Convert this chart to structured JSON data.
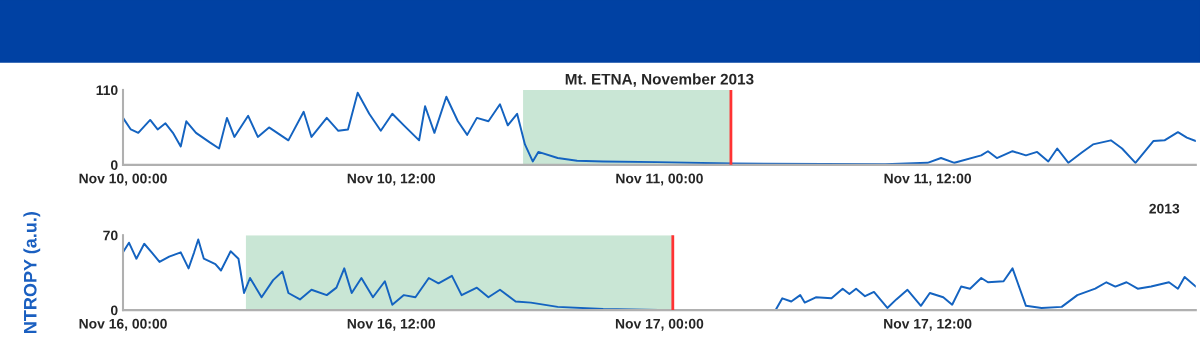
{
  "chart_data": [
    {
      "type": "line",
      "title": "Mt. ETNA, November 2013",
      "annotations": [
        "2013"
      ],
      "x": [
        "2013-11-10T00:00",
        "2013-11-10T00:21",
        "2013-11-10T00:41",
        "2013-11-10T01:13",
        "2013-11-10T01:33",
        "2013-11-10T01:54",
        "2013-11-10T02:14",
        "2013-11-10T02:35",
        "2013-11-10T02:50",
        "2013-11-10T03:16",
        "2013-11-10T03:53",
        "2013-11-10T04:18",
        "2013-11-10T04:39",
        "2013-11-10T04:59",
        "2013-11-10T05:36",
        "2013-11-10T06:02",
        "2013-11-10T06:32",
        "2013-11-10T07:24",
        "2013-11-10T08:05",
        "2013-11-10T08:26",
        "2013-11-10T09:07",
        "2013-11-10T09:38",
        "2013-11-10T10:04",
        "2013-11-10T10:30",
        "2013-11-10T11:01",
        "2013-11-10T11:32",
        "2013-11-10T12:03",
        "2013-11-10T12:34",
        "2013-11-10T13:15",
        "2013-11-10T13:31",
        "2013-11-10T13:56",
        "2013-11-10T14:28",
        "2013-11-10T14:59",
        "2013-11-10T15:24",
        "2013-11-10T15:50",
        "2013-11-10T16:21",
        "2013-11-10T16:52",
        "2013-11-10T17:13",
        "2013-11-10T17:38",
        "2013-11-10T17:59",
        "2013-11-10T18:20",
        "2013-11-10T18:35",
        "2013-11-10T19:27",
        "2013-11-10T20:19",
        "2013-11-10T21:29",
        "2013-11-10T23:54",
        "2013-11-11T03:12",
        "2013-11-11T10:06",
        "2013-11-11T12:00",
        "2013-11-11T12:36",
        "2013-11-11T13:12",
        "2013-11-11T14:24",
        "2013-11-11T14:42",
        "2013-11-11T15:06",
        "2013-11-11T15:48",
        "2013-11-11T16:24",
        "2013-11-11T16:54",
        "2013-11-11T17:24",
        "2013-11-11T17:48",
        "2013-11-11T18:18",
        "2013-11-11T18:54",
        "2013-11-11T19:24",
        "2013-11-11T20:12",
        "2013-11-11T20:42",
        "2013-11-11T21:18",
        "2013-11-11T22:06",
        "2013-11-11T22:36",
        "2013-11-11T23:12",
        "2013-11-11T23:36",
        "2013-11-12T00:00"
      ],
      "series": [
        {
          "color": "#1463c0",
          "values": [
            69,
            52,
            47,
            66,
            52,
            61,
            47,
            27,
            64,
            47,
            33,
            24,
            69,
            41,
            72,
            41,
            55,
            36,
            78,
            41,
            69,
            50,
            52,
            106,
            75,
            50,
            75,
            58,
            36,
            86,
            47,
            100,
            64,
            44,
            69,
            64,
            89,
            58,
            75,
            30,
            5,
            19,
            10,
            6,
            5,
            4,
            2,
            1,
            3,
            10,
            3,
            14,
            20,
            10,
            20,
            14,
            19,
            5,
            24,
            3,
            18,
            30,
            36,
            24,
            3,
            35,
            36,
            48,
            40,
            35
          ]
        }
      ],
      "xlim": [
        "2013-11-10T00:00",
        "2013-11-12T00:00"
      ],
      "xticks": [
        {
          "value": "2013-11-10T00:00",
          "label": "Nov 10, 00:00"
        },
        {
          "value": "2013-11-10T12:00",
          "label": "Nov 10, 12:00"
        },
        {
          "value": "2013-11-11T00:00",
          "label": "Nov 11, 00:00"
        },
        {
          "value": "2013-11-11T12:00",
          "label": "Nov 11, 12:00"
        }
      ],
      "ylim": [
        0,
        110
      ],
      "yticks": [
        0,
        110
      ],
      "bands": [
        {
          "axis": "x",
          "from": "2013-11-10T17:54",
          "to": "2013-11-11T03:12",
          "color": "#c9e6d5"
        }
      ],
      "ref_lines": [
        {
          "axis": "x",
          "value": "2013-11-11T03:12",
          "color": "#ff3333"
        }
      ],
      "grid": false,
      "legend": false
    },
    {
      "type": "line",
      "ylabel": "NTROPY (a.u.)",
      "x": [
        "2013-11-16T00:00",
        "2013-11-16T00:16",
        "2013-11-16T00:36",
        "2013-11-16T00:57",
        "2013-11-16T01:17",
        "2013-11-16T01:38",
        "2013-11-16T02:04",
        "2013-11-16T02:35",
        "2013-11-16T02:56",
        "2013-11-16T03:11",
        "2013-11-16T03:22",
        "2013-11-16T03:37",
        "2013-11-16T04:08",
        "2013-11-16T04:23",
        "2013-11-16T04:49",
        "2013-11-16T05:10",
        "2013-11-16T05:25",
        "2013-11-16T05:41",
        "2013-11-16T06:12",
        "2013-11-16T06:43",
        "2013-11-16T07:08",
        "2013-11-16T07:24",
        "2013-11-16T07:55",
        "2013-11-16T08:26",
        "2013-11-16T09:07",
        "2013-11-16T09:33",
        "2013-11-16T09:54",
        "2013-11-16T10:14",
        "2013-11-16T10:40",
        "2013-11-16T11:11",
        "2013-11-16T11:43",
        "2013-11-16T12:03",
        "2013-11-16T12:34",
        "2013-11-16T13:05",
        "2013-11-16T13:41",
        "2013-11-16T14:07",
        "2013-11-16T14:43",
        "2013-11-16T15:09",
        "2013-11-16T15:50",
        "2013-11-16T16:21",
        "2013-11-16T16:52",
        "2013-11-16T17:34",
        "2013-11-16T18:15",
        "2013-11-16T19:27",
        "2013-11-16T21:29",
        "2013-11-17T00:36",
        "2013-11-17T05:12",
        "2013-11-17T05:30",
        "2013-11-17T05:54",
        "2013-11-17T06:18",
        "2013-11-17T06:30",
        "2013-11-17T07:00",
        "2013-11-17T07:42",
        "2013-11-17T08:12",
        "2013-11-17T08:30",
        "2013-11-17T08:48",
        "2013-11-17T09:12",
        "2013-11-17T09:36",
        "2013-11-17T10:12",
        "2013-11-17T10:36",
        "2013-11-17T11:06",
        "2013-11-17T11:42",
        "2013-11-17T12:06",
        "2013-11-17T12:42",
        "2013-11-17T13:06",
        "2013-11-17T13:30",
        "2013-11-17T13:54",
        "2013-11-17T14:24",
        "2013-11-17T14:42",
        "2013-11-17T15:24",
        "2013-11-17T15:48",
        "2013-11-17T16:24",
        "2013-11-17T17:06",
        "2013-11-17T18:00",
        "2013-11-17T18:42",
        "2013-11-17T19:30",
        "2013-11-17T20:00",
        "2013-11-17T20:24",
        "2013-11-17T20:54",
        "2013-11-17T21:24",
        "2013-11-17T22:00",
        "2013-11-17T22:48",
        "2013-11-17T23:12",
        "2013-11-17T23:30",
        "2013-11-18T00:00"
      ],
      "series": [
        {
          "color": "#1463c0",
          "values": [
            54,
            63,
            48,
            62,
            54,
            45,
            50,
            54,
            39,
            54,
            66,
            48,
            43,
            37,
            55,
            48,
            16,
            30,
            12,
            28,
            36,
            16,
            10,
            19,
            14,
            21,
            39,
            16,
            30,
            12,
            27,
            5,
            14,
            12,
            30,
            25,
            32,
            14,
            21,
            12,
            19,
            8,
            7,
            3,
            1,
            0,
            0,
            11,
            8,
            14,
            7,
            12,
            11,
            20,
            15,
            20,
            13,
            17,
            2,
            10,
            19,
            4,
            16,
            12,
            5,
            22,
            20,
            30,
            26,
            27,
            39,
            4,
            2,
            3,
            14,
            20,
            26,
            22,
            26,
            20,
            22,
            26,
            20,
            31,
            22
          ]
        }
      ],
      "xlim": [
        "2013-11-16T00:00",
        "2013-11-18T00:00"
      ],
      "xticks": [
        {
          "value": "2013-11-16T00:00",
          "label": "Nov 16, 00:00"
        },
        {
          "value": "2013-11-16T12:00",
          "label": "Nov 16, 12:00"
        },
        {
          "value": "2013-11-17T00:00",
          "label": "Nov 17, 00:00"
        },
        {
          "value": "2013-11-17T12:00",
          "label": "Nov 17, 12:00"
        }
      ],
      "ylim": [
        0,
        70
      ],
      "yticks": [
        0,
        70
      ],
      "bands": [
        {
          "axis": "x",
          "from": "2013-11-16T05:30",
          "to": "2013-11-17T00:36",
          "color": "#c9e6d5"
        }
      ],
      "ref_lines": [
        {
          "axis": "x",
          "value": "2013-11-17T00:36",
          "color": "#ff3333"
        }
      ],
      "grid": false,
      "legend": false
    }
  ]
}
